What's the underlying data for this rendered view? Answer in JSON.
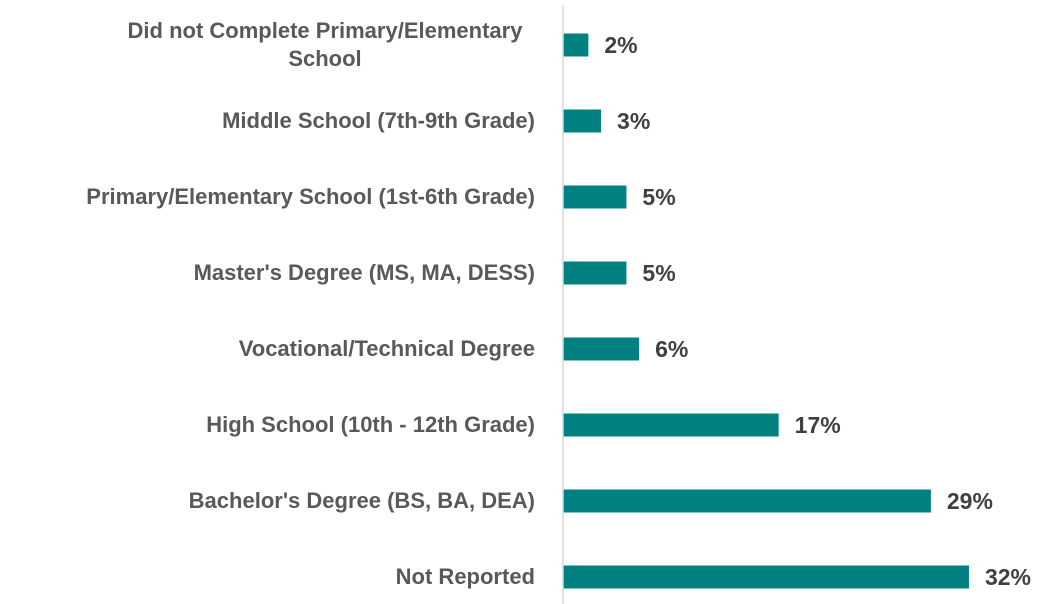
{
  "chart_data": {
    "type": "bar",
    "orientation": "horizontal",
    "categories": [
      "Did not Complete Primary/Elementary School",
      "Middle School (7th-9th Grade)",
      "Primary/Elementary School (1st-6th Grade)",
      "Master's Degree (MS, MA, DESS)",
      "Vocational/Technical Degree",
      "High School (10th - 12th Grade)",
      "Bachelor's Degree (BS, BA, DEA)",
      "Not Reported"
    ],
    "values": [
      2,
      3,
      5,
      5,
      6,
      17,
      29,
      32
    ],
    "value_labels": [
      "2%",
      "3%",
      "5%",
      "5%",
      "6%",
      "17%",
      "29%",
      "32%"
    ],
    "color": "#008080",
    "xlim": [
      0,
      35
    ]
  }
}
